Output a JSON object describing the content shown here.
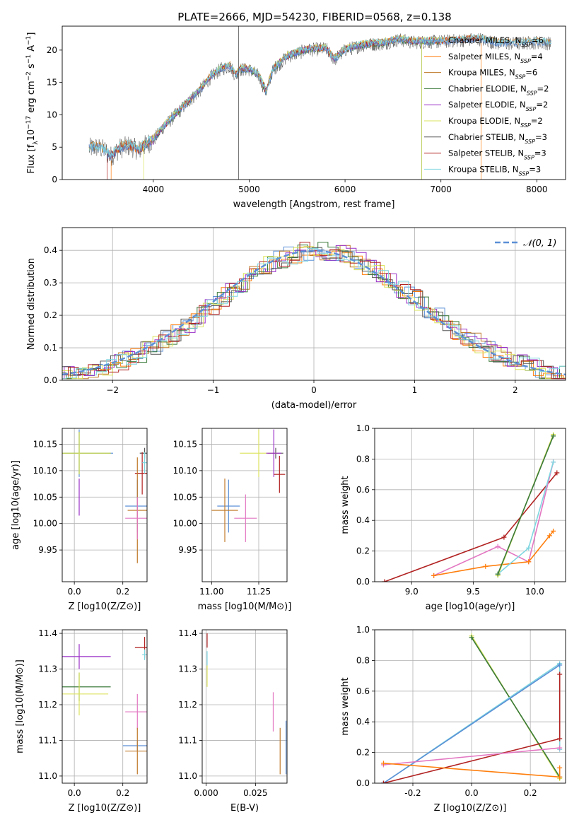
{
  "title": "PLATE=2666, MJD=54230, FIBERID=0568, z=0.138",
  "series": [
    {
      "name": "Chabrier MILES, N_SSP=6",
      "color": "#5b8fd6"
    },
    {
      "name": "Salpeter MILES, N_SSP=4",
      "color": "#ff7f0e"
    },
    {
      "name": "Kroupa MILES, N_SSP=6",
      "color": "#c07a2a"
    },
    {
      "name": "Chabrier ELODIE, N_SSP=2",
      "color": "#3a7a3a"
    },
    {
      "name": "Salpeter ELODIE, N_SSP=2",
      "color": "#9b30c8"
    },
    {
      "name": "Kroupa ELODIE, N_SSP=2",
      "color": "#dbe35c"
    },
    {
      "name": "Chabrier STELIB, N_SSP=3",
      "color": "#555555"
    },
    {
      "name": "Salpeter STELIB, N_SSP=3",
      "color": "#b22222"
    },
    {
      "name": "Kroupa STELIB, N_SSP=3",
      "color": "#7fd6e0"
    }
  ],
  "chart_data": [
    {
      "id": "spectrum",
      "type": "line",
      "xlabel": "wavelength [Angstrom, rest frame]",
      "ylabel": "Flux [f_λ 10^-17 erg cm^-2 s^-1 A^-1]",
      "xlim": [
        3050,
        8300
      ],
      "ylim": [
        0,
        23.7
      ],
      "xticks": [
        4000,
        5000,
        6000,
        7000,
        8000
      ],
      "yticks": [
        0,
        5,
        10,
        15,
        20
      ],
      "legend": "top-right",
      "grid": false,
      "data_points": [
        [
          3330,
          4.8
        ],
        [
          3400,
          5.0
        ],
        [
          3500,
          4.5
        ],
        [
          3550,
          3.5
        ],
        [
          3650,
          4.8
        ],
        [
          3750,
          5.2
        ],
        [
          3850,
          4.5
        ],
        [
          3930,
          5.5
        ],
        [
          4000,
          6.0
        ],
        [
          4100,
          8.0
        ],
        [
          4200,
          9.5
        ],
        [
          4300,
          11.0
        ],
        [
          4400,
          12.5
        ],
        [
          4500,
          14.0
        ],
        [
          4600,
          15.8
        ],
        [
          4700,
          17.0
        ],
        [
          4800,
          17.5
        ],
        [
          4860,
          16.0
        ],
        [
          4900,
          17.0
        ],
        [
          5000,
          17.0
        ],
        [
          5100,
          16.0
        ],
        [
          5175,
          13.5
        ],
        [
          5250,
          17.0
        ],
        [
          5400,
          19.0
        ],
        [
          5600,
          20.0
        ],
        [
          5800,
          20.2
        ],
        [
          5890,
          18.5
        ],
        [
          6000,
          20.0
        ],
        [
          6200,
          20.8
        ],
        [
          6400,
          21.0
        ],
        [
          6563,
          21.6
        ],
        [
          6700,
          21.2
        ],
        [
          7000,
          21.3
        ],
        [
          7200,
          21.5
        ],
        [
          7400,
          21.7
        ],
        [
          7600,
          21.0
        ],
        [
          7800,
          21.0
        ],
        [
          8000,
          21.2
        ],
        [
          8150,
          21.0
        ]
      ]
    },
    {
      "id": "residuals",
      "type": "histogram",
      "xlabel": "(data-model)/error",
      "ylabel": "Normed distribution",
      "xlim": [
        -2.5,
        2.5
      ],
      "ylim": [
        0,
        0.47
      ],
      "xticks": [
        -2,
        -1,
        0,
        1,
        2
      ],
      "yticks": [
        0.0,
        0.1,
        0.2,
        0.3,
        0.4
      ],
      "grid": true,
      "legend": "top-right",
      "gaussian_label": "N(0,1)",
      "bin_width": 0.1
    },
    {
      "id": "z-age",
      "type": "scatter",
      "xlabel": "Z [log10(Z/Z⊙)]",
      "ylabel": "age  [log10(age/yr)]",
      "xlim": [
        -0.05,
        0.3
      ],
      "ylim": [
        9.89,
        10.18
      ],
      "xticks": [
        0.0,
        0.2
      ],
      "yticks": [
        9.95,
        10.0,
        10.05,
        10.1,
        10.15
      ],
      "grid": true,
      "points": [
        {
          "x": 0.02,
          "y": 10.133,
          "xerr": 0.14,
          "yerr": 0.045,
          "color": "#5b8fd6"
        },
        {
          "x": 0.02,
          "y": 10.133,
          "xerr": 0.13,
          "yerr": 0.04,
          "color": "#3a7a3a"
        },
        {
          "x": 0.02,
          "y": 10.133,
          "xerr": 0.13,
          "yerr": 0.04,
          "color": "#dbe35c"
        },
        {
          "x": 0.02,
          "y": 10.05,
          "xerr": 0.0,
          "yerr": 0.035,
          "color": "#9b30c8"
        },
        {
          "x": 0.29,
          "y": 10.133,
          "xerr": 0.02,
          "yerr": 0.01,
          "color": "#555555"
        },
        {
          "x": 0.28,
          "y": 10.095,
          "xerr": 0.03,
          "yerr": 0.04,
          "color": "#b22222"
        },
        {
          "x": 0.26,
          "y": 10.033,
          "xerr": 0.05,
          "yerr": 0.05,
          "color": "#5b8fd6"
        },
        {
          "x": 0.26,
          "y": 10.025,
          "xerr": 0.04,
          "yerr": 0.1,
          "color": "#c07a2a"
        },
        {
          "x": 0.26,
          "y": 10.01,
          "xerr": 0.05,
          "yerr": 0.04,
          "color": "#e377c2"
        },
        {
          "x": 0.29,
          "y": 10.115,
          "xerr": 0.01,
          "yerr": 0.02,
          "color": "#7fd6e0"
        }
      ]
    },
    {
      "id": "mass-age",
      "type": "scatter",
      "xlabel": "mass [log10(M/M⊙)]",
      "ylabel": "",
      "xlim": [
        10.95,
        11.4
      ],
      "ylim": [
        9.89,
        10.18
      ],
      "xticks": [
        11.0,
        11.25
      ],
      "yticks": [
        9.95,
        10.0,
        10.05,
        10.1,
        10.15
      ],
      "grid": true,
      "points": [
        {
          "x": 11.34,
          "y": 10.133,
          "xerr": 0.04,
          "yerr": 0.01,
          "color": "#555555"
        },
        {
          "x": 11.25,
          "y": 10.133,
          "xerr": 0.1,
          "yerr": 0.045,
          "color": "#dbe35c"
        },
        {
          "x": 11.33,
          "y": 10.133,
          "xerr": 0.04,
          "yerr": 0.045,
          "color": "#9b30c8"
        },
        {
          "x": 11.36,
          "y": 10.093,
          "xerr": 0.03,
          "yerr": 0.035,
          "color": "#b22222"
        },
        {
          "x": 11.09,
          "y": 10.033,
          "xerr": 0.06,
          "yerr": 0.05,
          "color": "#5b8fd6"
        },
        {
          "x": 11.07,
          "y": 10.025,
          "xerr": 0.07,
          "yerr": 0.06,
          "color": "#c07a2a"
        },
        {
          "x": 11.18,
          "y": 10.01,
          "xerr": 0.06,
          "yerr": 0.045,
          "color": "#e377c2"
        }
      ]
    },
    {
      "id": "age-weight",
      "type": "line",
      "xlabel": "age  [log10(age/yr)]",
      "ylabel": "mass weight",
      "xlim": [
        8.7,
        10.25
      ],
      "ylim": [
        0,
        1
      ],
      "xticks": [
        9.0,
        9.5,
        10.0
      ],
      "yticks": [
        0.0,
        0.2,
        0.4,
        0.6,
        0.8,
        1.0
      ],
      "grid": true,
      "series": [
        {
          "color": "#b22222",
          "points": [
            [
              8.78,
              0.0
            ],
            [
              9.75,
              0.29
            ],
            [
              10.18,
              0.71
            ]
          ]
        },
        {
          "color": "#e377c2",
          "points": [
            [
              9.18,
              0.04
            ],
            [
              9.7,
              0.23
            ],
            [
              9.95,
              0.13
            ],
            [
              10.15,
              0.78
            ]
          ]
        },
        {
          "color": "#ff7f0e",
          "points": [
            [
              9.18,
              0.04
            ],
            [
              9.6,
              0.1
            ],
            [
              9.95,
              0.13
            ],
            [
              10.12,
              0.3
            ],
            [
              10.15,
              0.33
            ]
          ]
        },
        {
          "color": "#7fd6e0",
          "points": [
            [
              9.7,
              0.05
            ],
            [
              9.95,
              0.22
            ],
            [
              10.15,
              0.78
            ]
          ]
        },
        {
          "color": "#dbe35c",
          "points": [
            [
              9.7,
              0.04
            ],
            [
              10.15,
              0.96
            ]
          ]
        },
        {
          "color": "#3a7a3a",
          "points": [
            [
              9.7,
              0.05
            ],
            [
              10.15,
              0.95
            ]
          ]
        }
      ]
    },
    {
      "id": "z-mass",
      "type": "scatter",
      "xlabel": "Z [log10(Z/Z⊙)]",
      "ylabel": "mass [log10(M/M⊙)]",
      "xlim": [
        -0.05,
        0.3
      ],
      "ylim": [
        10.98,
        11.41
      ],
      "xticks": [
        0.0,
        0.2
      ],
      "yticks": [
        11.0,
        11.1,
        11.2,
        11.3,
        11.4
      ],
      "grid": true,
      "points": [
        {
          "x": 0.02,
          "y": 11.335,
          "xerr": 0.13,
          "yerr": 0.035,
          "color": "#9b30c8"
        },
        {
          "x": 0.02,
          "y": 11.25,
          "xerr": 0.13,
          "yerr": 0.04,
          "color": "#3a7a3a"
        },
        {
          "x": 0.02,
          "y": 11.23,
          "xerr": 0.12,
          "yerr": 0.06,
          "color": "#dbe35c"
        },
        {
          "x": 0.29,
          "y": 11.36,
          "xerr": 0.04,
          "yerr": 0.03,
          "color": "#b22222"
        },
        {
          "x": 0.29,
          "y": 11.34,
          "xerr": 0.01,
          "yerr": 0.015,
          "color": "#7fd6e0"
        },
        {
          "x": 0.26,
          "y": 11.18,
          "xerr": 0.05,
          "yerr": 0.05,
          "color": "#e377c2"
        },
        {
          "x": 0.26,
          "y": 11.085,
          "xerr": 0.06,
          "yerr": 0.015,
          "color": "#5b8fd6"
        },
        {
          "x": 0.26,
          "y": 11.07,
          "xerr": 0.05,
          "yerr": 0.065,
          "color": "#c07a2a"
        }
      ]
    },
    {
      "id": "ebv-mass",
      "type": "scatter",
      "xlabel": "E(B-V)",
      "ylabel": "",
      "xlim": [
        -0.002,
        0.041
      ],
      "ylim": [
        10.98,
        11.41
      ],
      "xticks": [
        0.0,
        0.025
      ],
      "yticks": [
        11.0,
        11.1,
        11.2,
        11.3,
        11.4
      ],
      "grid": true,
      "points": [
        {
          "x": 0.0005,
          "y": 11.38,
          "xerr": 0,
          "yerr": 0.02,
          "color": "#b22222"
        },
        {
          "x": 0.0005,
          "y": 11.33,
          "xerr": 0,
          "yerr": 0.02,
          "color": "#7fd6e0"
        },
        {
          "x": 0.0005,
          "y": 11.28,
          "xerr": 0,
          "yerr": 0.03,
          "color": "#dbe35c"
        },
        {
          "x": 0.034,
          "y": 11.18,
          "xerr": 0,
          "yerr": 0.055,
          "color": "#e377c2"
        },
        {
          "x": 0.0375,
          "y": 11.07,
          "xerr": 0,
          "yerr": 0.065,
          "color": "#c07a2a"
        },
        {
          "x": 0.0405,
          "y": 11.08,
          "xerr": 0,
          "yerr": 0.075,
          "color": "#5b8fd6"
        }
      ]
    },
    {
      "id": "z-weight",
      "type": "line",
      "xlabel": "Z [log10(Z/Z⊙)]",
      "ylabel": "mass weight",
      "xlim": [
        -0.33,
        0.32
      ],
      "ylim": [
        0,
        1
      ],
      "xticks": [
        -0.2,
        0.0,
        0.2
      ],
      "yticks": [
        0.0,
        0.2,
        0.4,
        0.6,
        0.8,
        1.0
      ],
      "grid": true,
      "series": [
        {
          "color": "#dbe35c",
          "points": [
            [
              0.0,
              0.96
            ],
            [
              0.3,
              0.03
            ]
          ]
        },
        {
          "color": "#3a7a3a",
          "points": [
            [
              0.0,
              0.95
            ],
            [
              0.3,
              0.04
            ]
          ]
        },
        {
          "color": "#7fd6e0",
          "points": [
            [
              -0.3,
              0.0
            ],
            [
              0.3,
              0.78
            ],
            [
              0.3,
              0.22
            ]
          ]
        },
        {
          "color": "#5b8fd6",
          "points": [
            [
              -0.3,
              0.0
            ],
            [
              0.3,
              0.77
            ]
          ]
        },
        {
          "color": "#b22222",
          "points": [
            [
              -0.3,
              0.0
            ],
            [
              0.3,
              0.29
            ],
            [
              0.3,
              0.71
            ]
          ]
        },
        {
          "color": "#e377c2",
          "points": [
            [
              -0.3,
              0.12
            ],
            [
              0.3,
              0.23
            ]
          ]
        },
        {
          "color": "#ff7f0e",
          "points": [
            [
              -0.3,
              0.13
            ],
            [
              0.3,
              0.04
            ],
            [
              0.3,
              0.1
            ]
          ]
        }
      ]
    }
  ]
}
